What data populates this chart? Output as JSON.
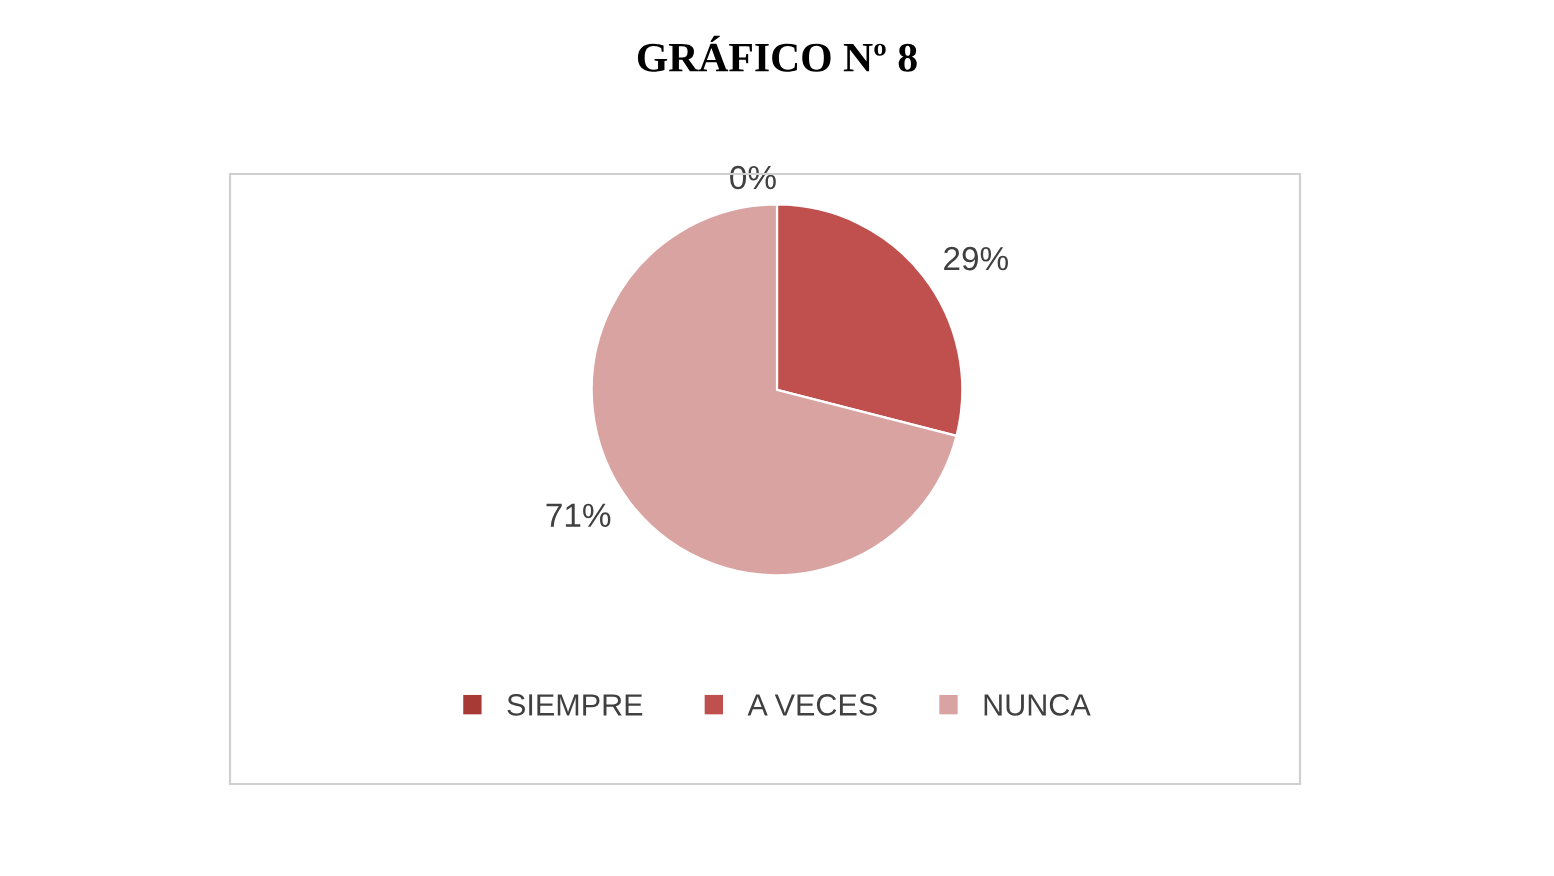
{
  "chart_data": {
    "type": "pie",
    "title": "GRÁFICO Nº 8",
    "categories": [
      "SIEMPRE",
      "A VECES",
      "NUNCA"
    ],
    "values": [
      0,
      29,
      71
    ],
    "colors": [
      "#a83a36",
      "#c0504d",
      "#d9a3a2"
    ],
    "value_labels": [
      "0%",
      "29%",
      "71%"
    ],
    "legend": "bottom"
  }
}
